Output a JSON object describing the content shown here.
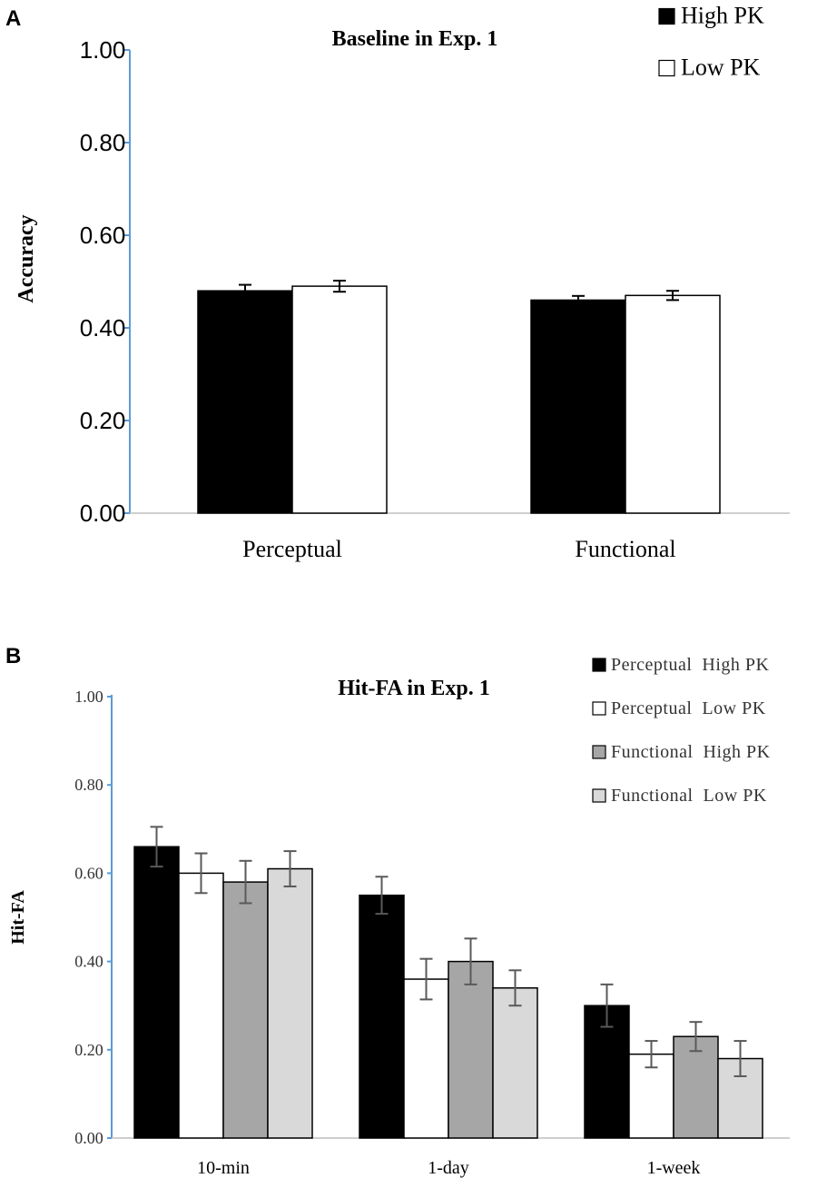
{
  "chart_data": [
    {
      "panel": "A",
      "type": "bar",
      "title": "Baseline in Exp. 1",
      "ylabel": "Accuracy",
      "xlabel": "",
      "ylim": [
        0,
        1
      ],
      "yticks": [
        "0.00",
        "0.20",
        "0.40",
        "0.60",
        "0.80",
        "1.00"
      ],
      "categories": [
        "Perceptual",
        "Functional"
      ],
      "series": [
        {
          "name": "High PK",
          "values": [
            0.48,
            0.46
          ],
          "errors": [
            0.013,
            0.009
          ],
          "color": "#000000"
        },
        {
          "name": "Low PK",
          "values": [
            0.49,
            0.47
          ],
          "errors": [
            0.012,
            0.01
          ],
          "color": "#ffffff"
        }
      ],
      "legend": "top-right"
    },
    {
      "panel": "B",
      "type": "bar",
      "title": "Hit-FA in Exp. 1",
      "ylabel": "Hit-FA",
      "xlabel": "",
      "ylim": [
        0,
        1
      ],
      "yticks": [
        "0.00",
        "0.20",
        "0.40",
        "0.60",
        "0.80",
        "1.00"
      ],
      "categories": [
        "10-min",
        "1-day",
        "1-week"
      ],
      "series": [
        {
          "name": "Perceptual  High PK",
          "values": [
            0.66,
            0.55,
            0.3
          ],
          "errors": [
            0.045,
            0.042,
            0.048
          ],
          "color": "#000000"
        },
        {
          "name": "Perceptual  Low PK",
          "values": [
            0.6,
            0.36,
            0.19
          ],
          "errors": [
            0.045,
            0.046,
            0.03
          ],
          "color": "#ffffff"
        },
        {
          "name": "Functional  High PK",
          "values": [
            0.58,
            0.4,
            0.23
          ],
          "errors": [
            0.048,
            0.052,
            0.033
          ],
          "color": "#a6a6a6"
        },
        {
          "name": "Functional  Low PK",
          "values": [
            0.61,
            0.34,
            0.18
          ],
          "errors": [
            0.04,
            0.04,
            0.04
          ],
          "color": "#d9d9d9"
        }
      ],
      "legend": "top-right"
    }
  ]
}
